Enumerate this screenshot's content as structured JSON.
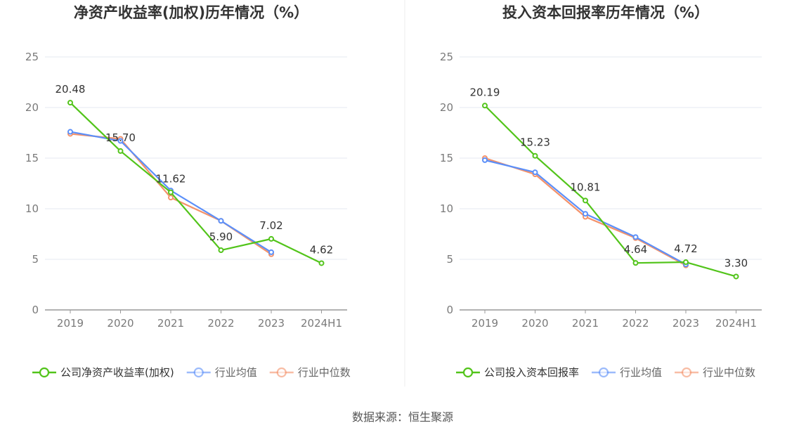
{
  "footer": {
    "source": "数据来源：恒生聚源"
  },
  "colors": {
    "company": "#52c41a",
    "average": "#5b8ff9",
    "median": "#f4926a",
    "grid": "#e6e8f0",
    "axis": "#999999"
  },
  "chart_data": [
    {
      "type": "line",
      "title": "净资产收益率(加权)历年情况（%）",
      "categories": [
        "2019",
        "2020",
        "2021",
        "2022",
        "2023",
        "2024H1"
      ],
      "ylim": [
        0,
        25
      ],
      "yticks": [
        0,
        5,
        10,
        15,
        20,
        25
      ],
      "grid": true,
      "legend_position": "bottom",
      "series": [
        {
          "name": "公司净资产收益率(加权)",
          "role": "company",
          "values": [
            20.48,
            15.7,
            11.62,
            5.9,
            7.02,
            4.62
          ],
          "labels": [
            "20.48",
            "15.70",
            "11.62",
            "5.90",
            "7.02",
            "4.62"
          ]
        },
        {
          "name": "行业均值",
          "role": "average",
          "values": [
            17.6,
            16.7,
            11.8,
            8.8,
            5.7,
            null
          ]
        },
        {
          "name": "行业中位数",
          "role": "median",
          "values": [
            17.4,
            16.9,
            11.1,
            8.8,
            5.5,
            null
          ]
        }
      ]
    },
    {
      "type": "line",
      "title": "投入资本回报率历年情况（%）",
      "categories": [
        "2019",
        "2020",
        "2021",
        "2022",
        "2023",
        "2024H1"
      ],
      "ylim": [
        0,
        25
      ],
      "yticks": [
        0,
        5,
        10,
        15,
        20,
        25
      ],
      "grid": true,
      "legend_position": "bottom",
      "series": [
        {
          "name": "公司投入资本回报率",
          "role": "company",
          "values": [
            20.19,
            15.23,
            10.81,
            4.64,
            4.72,
            3.3
          ],
          "labels": [
            "20.19",
            "15.23",
            "10.81",
            "4.64",
            "4.72",
            "3.30"
          ]
        },
        {
          "name": "行业均值",
          "role": "average",
          "values": [
            14.8,
            13.6,
            9.5,
            7.2,
            4.5,
            null
          ]
        },
        {
          "name": "行业中位数",
          "role": "median",
          "values": [
            15.0,
            13.4,
            9.2,
            7.1,
            4.4,
            null
          ]
        }
      ]
    }
  ]
}
